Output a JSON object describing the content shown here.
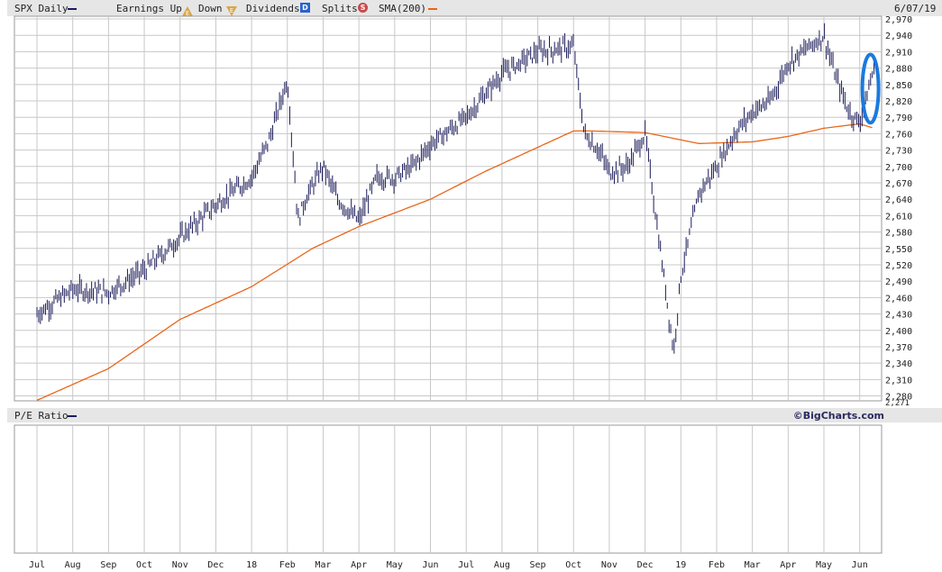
{
  "header": {
    "symbol_label": "SPX Daily",
    "earnings_up_label": "Earnings Up",
    "earnings_up_badge": "E",
    "earnings_down_label": "Down",
    "earnings_down_badge": "E",
    "dividends_label": "Dividends",
    "dividends_badge": "D",
    "splits_label": "Splits",
    "splits_badge": "S",
    "sma_label": "SMA(200)",
    "date": "6/07/19"
  },
  "pe_panel": {
    "label": "P/E Ratio",
    "brand": "©BigCharts.com"
  },
  "colors": {
    "price": "#1c1c5a",
    "sma": "#e8661a",
    "highlight": "#1a7adf",
    "grid": "#c8c8c8"
  },
  "icons": {
    "earnings_up": "triangle-up-icon",
    "earnings_down": "triangle-down-icon",
    "dividends": "square-badge-icon",
    "splits": "circle-badge-icon",
    "highlight": "ellipse-highlight-icon"
  },
  "chart_data": {
    "type": "line",
    "ohlc_style": "bar",
    "y_ticks": [
      2970,
      2940,
      2910,
      2880,
      2850,
      2820,
      2790,
      2760,
      2730,
      2700,
      2670,
      2640,
      2610,
      2580,
      2550,
      2520,
      2490,
      2460,
      2430,
      2400,
      2370,
      2340,
      2310,
      2280
    ],
    "y_tick_labels": [
      "2,970",
      "2,940",
      "2,910",
      "2,880",
      "2,850",
      "2,820",
      "2,790",
      "2,760",
      "2,730",
      "2,700",
      "2,670",
      "2,640",
      "2,610",
      "2,580",
      "2,550",
      "2,520",
      "2,490",
      "2,460",
      "2,430",
      "2,400",
      "2,370",
      "2,340",
      "2,310",
      "2,280"
    ],
    "y_min_label": "2,271",
    "ylim": [
      2271,
      2975
    ],
    "x_months": [
      "Jul",
      "Aug",
      "Sep",
      "Oct",
      "Nov",
      "Dec",
      "18",
      "Feb",
      "Mar",
      "Apr",
      "May",
      "Jun",
      "Jul",
      "Aug",
      "Sep",
      "Oct",
      "Nov",
      "Dec",
      "19",
      "Feb",
      "Mar",
      "Apr",
      "May",
      "Jun"
    ],
    "grid": true,
    "series": [
      {
        "name": "SPX Daily",
        "anchors": [
          [
            0,
            2430
          ],
          [
            1,
            2475
          ],
          [
            2,
            2470
          ],
          [
            3,
            2510
          ],
          [
            4,
            2570
          ],
          [
            5,
            2630
          ],
          [
            6,
            2680
          ],
          [
            6.5,
            2750
          ],
          [
            7,
            2860
          ],
          [
            7.3,
            2600
          ],
          [
            7.5,
            2640
          ],
          [
            8,
            2700
          ],
          [
            8.4,
            2640
          ],
          [
            9,
            2600
          ],
          [
            9.5,
            2680
          ],
          [
            10,
            2680
          ],
          [
            10.5,
            2700
          ],
          [
            11,
            2740
          ],
          [
            12,
            2790
          ],
          [
            12.5,
            2830
          ],
          [
            13,
            2870
          ],
          [
            14,
            2910
          ],
          [
            15,
            2920
          ],
          [
            15.3,
            2760
          ],
          [
            15.7,
            2730
          ],
          [
            16,
            2690
          ],
          [
            16.5,
            2700
          ],
          [
            17,
            2760
          ],
          [
            17.5,
            2510
          ],
          [
            17.8,
            2360
          ],
          [
            18,
            2500
          ],
          [
            18.5,
            2650
          ],
          [
            19,
            2700
          ],
          [
            19.5,
            2760
          ],
          [
            20,
            2800
          ],
          [
            20.5,
            2820
          ],
          [
            21,
            2890
          ],
          [
            22,
            2940
          ],
          [
            22.3,
            2870
          ],
          [
            22.7,
            2800
          ],
          [
            23,
            2780
          ],
          [
            23.4,
            2880
          ]
        ]
      },
      {
        "name": "SMA(200)",
        "anchors": [
          [
            0,
            2272
          ],
          [
            2,
            2330
          ],
          [
            4,
            2420
          ],
          [
            6,
            2480
          ],
          [
            7.7,
            2550
          ],
          [
            9,
            2590
          ],
          [
            11,
            2640
          ],
          [
            12.5,
            2690
          ],
          [
            13.5,
            2720
          ],
          [
            15,
            2765
          ],
          [
            15.5,
            2765
          ],
          [
            17,
            2762
          ],
          [
            18.5,
            2742
          ],
          [
            20,
            2745
          ],
          [
            21,
            2755
          ],
          [
            22,
            2770
          ],
          [
            23,
            2778
          ],
          [
            23.4,
            2770
          ]
        ]
      }
    ],
    "annotations": [
      {
        "type": "ellipse-highlight",
        "x": 23.3,
        "y_range": [
          2780,
          2905
        ]
      }
    ]
  }
}
